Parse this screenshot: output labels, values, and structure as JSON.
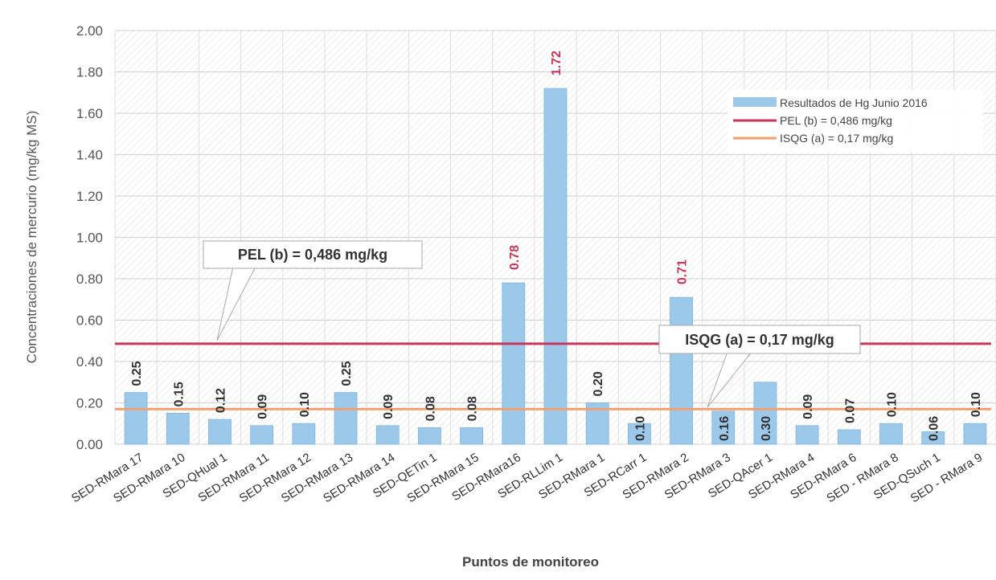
{
  "chart_data": {
    "type": "bar",
    "title": "",
    "xlabel": "Puntos de monitoreo",
    "ylabel": "Concentraciones de mercurio (mg/kg MS)",
    "ylim": [
      0,
      2.0
    ],
    "yticks": [
      "0.00",
      "0.20",
      "0.40",
      "0.60",
      "0.80",
      "1.00",
      "1.20",
      "1.40",
      "1.60",
      "1.80",
      "2.00"
    ],
    "grid": true,
    "legend_position": "top-right",
    "categories": [
      "SED-RMara 17",
      "SED-RMara 10",
      "SED-QHual 1",
      "SED-RMara 11",
      "SED-RMara 12",
      "SED-RMara 13",
      "SED-RMara 14",
      "SED-QETin 1",
      "SED-RMara 15",
      "SED-RMara16",
      "SED-RLLim 1",
      "SED-RMara 1",
      "SED-RCarr 1",
      "SED-RMara 2",
      "SED-RMara 3",
      "SED-QAcer 1",
      "SED-RMara 4",
      "SED-RMara 6",
      "SED - RMara 8",
      "SED-QSuch 1",
      "SED - RMara 9"
    ],
    "series": [
      {
        "name": "Resultados de Hg Junio 2016",
        "values": [
          0.25,
          0.15,
          0.12,
          0.09,
          0.1,
          0.25,
          0.09,
          0.08,
          0.08,
          0.78,
          1.72,
          0.2,
          0.1,
          0.71,
          0.16,
          0.3,
          0.09,
          0.07,
          0.1,
          0.06,
          0.1
        ],
        "labels": [
          "0.25",
          "0.15",
          "0.12",
          "0.09",
          "0.10",
          "0.25",
          "0.09",
          "0.08",
          "0.08",
          "0.78",
          "1.72",
          "0.20",
          "0.10",
          "0.71",
          "0.16",
          "0.30",
          "0.09",
          "0.07",
          "0.10",
          "0.06",
          "0.10"
        ],
        "color": "#9cc9ea",
        "highlight_color": "#c8365a",
        "highlighted_categories": [
          "SED-RMara16",
          "SED-RLLim 1",
          "SED-RMara 2"
        ]
      }
    ],
    "reference_lines": [
      {
        "name": "PEL (b) = 0,486 mg/kg",
        "value": 0.486,
        "color": "#c8365a"
      },
      {
        "name": "ISQG (a) = 0,17 mg/kg",
        "value": 0.17,
        "color": "#f0a070"
      }
    ],
    "annotations": [
      {
        "text": "PEL (b) = 0,486 mg/kg",
        "points_to": "PEL"
      },
      {
        "text": "ISQG (a) = 0,17 mg/kg",
        "points_to": "ISQG"
      }
    ],
    "legend": [
      {
        "label": "Resultados de Hg Junio 2016",
        "kind": "bar"
      },
      {
        "label": "PEL (b) = 0,486 mg/kg",
        "kind": "line"
      },
      {
        "label": "ISQG (a) = 0,17 mg/kg",
        "kind": "line"
      }
    ]
  }
}
